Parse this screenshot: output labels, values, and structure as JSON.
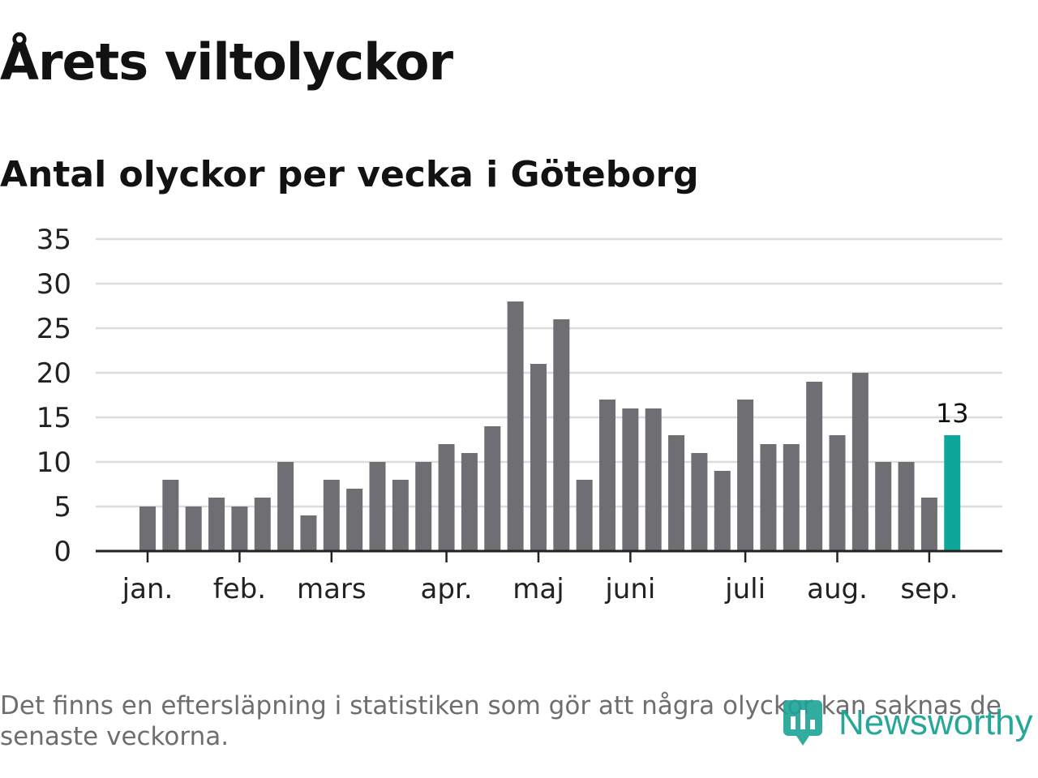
{
  "title": "Årets viltolyckor",
  "subtitle": "Antal olyckor per vecka i Göteborg",
  "footnote": "Det finns en eftersläpning i statistiken som gör att några olyckor kan saknas de senaste veckorna.",
  "logo": {
    "text": "Newsworthy",
    "icon": "newsworthy-logo-icon",
    "color": "#1ba393"
  },
  "colors": {
    "bar": "#6f6e73",
    "highlight": "#0ea59a",
    "grid": "#dcdcdc",
    "axis": "#222222",
    "text": "#222222"
  },
  "chart_data": {
    "type": "bar",
    "title": "Antal olyckor per vecka i Göteborg",
    "xlabel": "",
    "ylabel": "",
    "ylim": [
      0,
      35
    ],
    "yticks": [
      "0",
      "5",
      "10",
      "15",
      "20",
      "25",
      "30",
      "35"
    ],
    "grid": true,
    "month_labels": [
      "jan.",
      "feb.",
      "mars",
      "apr.",
      "maj",
      "juni",
      "juli",
      "aug.",
      "sep."
    ],
    "month_label_weeks": [
      1,
      5,
      9,
      14,
      18,
      22,
      27,
      31,
      35
    ],
    "weeks": [
      1,
      2,
      3,
      4,
      5,
      6,
      7,
      8,
      9,
      10,
      11,
      12,
      13,
      14,
      15,
      16,
      17,
      18,
      19,
      20,
      21,
      22,
      23,
      24,
      25,
      26,
      27,
      28,
      29,
      30,
      31,
      32,
      33,
      34,
      35,
      36
    ],
    "values": [
      5,
      8,
      5,
      6,
      5,
      6,
      10,
      4,
      8,
      7,
      10,
      8,
      10,
      12,
      11,
      14,
      28,
      21,
      26,
      8,
      17,
      16,
      16,
      13,
      11,
      9,
      17,
      12,
      12,
      19,
      13,
      20,
      10,
      10,
      6,
      13
    ],
    "highlight_index": 35,
    "highlight_label": "13"
  }
}
